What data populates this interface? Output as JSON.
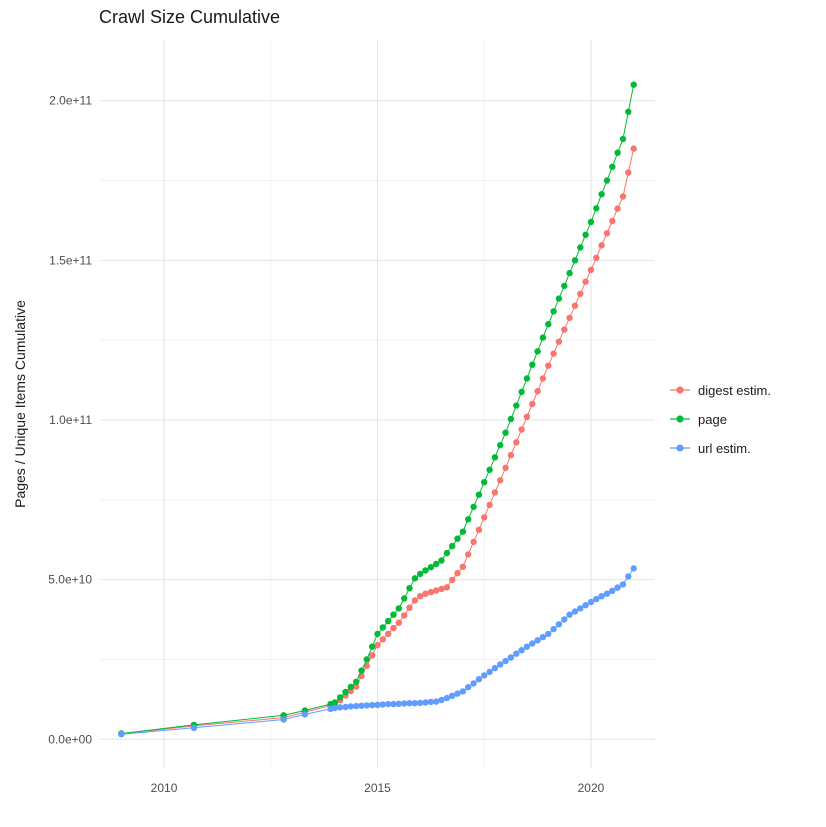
{
  "chart_data": {
    "type": "scatter",
    "connected": true,
    "title": "Crawl Size Cumulative",
    "xlabel": "",
    "ylabel": "Pages / Unique Items Cumulative",
    "legend_position": "right",
    "grid": true,
    "xlim": [
      2008.5,
      2021.5
    ],
    "ylim": [
      -9000000000.0,
      219000000000.0
    ],
    "x_ticks": [
      2010,
      2015,
      2020
    ],
    "x_tick_labels": [
      "2010",
      "2015",
      "2020"
    ],
    "x_minor": [
      2012.5,
      2017.5
    ],
    "y_ticks": [
      0,
      50000000000.0,
      100000000000.0,
      150000000000.0,
      200000000000.0
    ],
    "y_tick_labels": [
      "0.0e+00",
      "5.0e+10",
      "1.0e+11",
      "1.5e+11",
      "2.0e+11"
    ],
    "y_minor": [
      25000000000.0,
      75000000000.0,
      125000000000.0,
      175000000000.0
    ],
    "colors": {
      "background": "#FFFFFF",
      "grid_major": "#E3E3E3",
      "grid_minor": "#F2F2F2",
      "tick_text": "#4D4D4D"
    },
    "x": [
      2009.0,
      2010.7,
      2012.8,
      2013.3,
      2013.9,
      2014.0,
      2014.125,
      2014.25,
      2014.375,
      2014.5,
      2014.625,
      2014.75,
      2014.875,
      2015.0,
      2015.125,
      2015.25,
      2015.375,
      2015.5,
      2015.625,
      2015.75,
      2015.875,
      2016.0,
      2016.125,
      2016.25,
      2016.375,
      2016.5,
      2016.625,
      2016.75,
      2016.875,
      2017.0,
      2017.125,
      2017.25,
      2017.375,
      2017.5,
      2017.625,
      2017.75,
      2017.875,
      2018.0,
      2018.125,
      2018.25,
      2018.375,
      2018.5,
      2018.625,
      2018.75,
      2018.875,
      2019.0,
      2019.125,
      2019.25,
      2019.375,
      2019.5,
      2019.625,
      2019.75,
      2019.875,
      2020.0,
      2020.125,
      2020.25,
      2020.375,
      2020.5,
      2020.625,
      2020.75,
      2020.875,
      2021.0
    ],
    "series": [
      {
        "name": "digest estim.",
        "color": "#F8766D",
        "values": [
          1700000000.0,
          4200000000.0,
          6800000000.0,
          8500000000.0,
          10500000000.0,
          10800000000.0,
          12200000000.0,
          13700000000.0,
          15100000000.0,
          16500000000.0,
          19800000000.0,
          23000000000.0,
          26300000000.0,
          29500000000.0,
          31300000000.0,
          33000000000.0,
          34800000000.0,
          36500000000.0,
          38800000000.0,
          41200000000.0,
          43500000000.0,
          44800000000.0,
          45600000000.0,
          46100000000.0,
          46600000000.0,
          47100000000.0,
          47600000000.0,
          49900000000.0,
          52000000000.0,
          54000000000.0,
          57900000000.0,
          61800000000.0,
          65600000000.0,
          69500000000.0,
          73400000000.0,
          77300000000.0,
          81100000000.0,
          85000000000.0,
          89000000000.0,
          93000000000.0,
          97000000000.0,
          101000000000.0,
          105000000000.0,
          109000000000.0,
          113000000000.0,
          117000000000.0,
          120800000000.0,
          124500000000.0,
          128300000000.0,
          132000000000.0,
          135800000000.0,
          139500000000.0,
          143300000000.0,
          147000000000.0,
          150800000000.0,
          154700000000.0,
          158500000000.0,
          162300000000.0,
          166200000000.0,
          170000000000.0,
          177500000000.0,
          185000000000.0
        ]
      },
      {
        "name": "page",
        "color": "#00BA38",
        "values": [
          1800000000.0,
          4500000000.0,
          7500000000.0,
          9000000000.0,
          11000000000.0,
          11500000000.0,
          13100000000.0,
          14800000000.0,
          16400000000.0,
          18000000000.0,
          21500000000.0,
          25000000000.0,
          29000000000.0,
          33000000000.0,
          35000000000.0,
          37000000000.0,
          39000000000.0,
          41000000000.0,
          44100000000.0,
          47300000000.0,
          50400000000.0,
          51800000000.0,
          52900000000.0,
          53900000000.0,
          54900000000.0,
          56000000000.0,
          58300000000.0,
          60500000000.0,
          62800000000.0,
          65000000000.0,
          68900000000.0,
          72800000000.0,
          76600000000.0,
          80500000000.0,
          84400000000.0,
          88300000000.0,
          92100000000.0,
          96000000000.0,
          100300000000.0,
          104500000000.0,
          108800000000.0,
          113000000000.0,
          117300000000.0,
          121500000000.0,
          125800000000.0,
          130000000000.0,
          134000000000.0,
          138000000000.0,
          142000000000.0,
          146000000000.0,
          150000000000.0,
          154000000000.0,
          158000000000.0,
          162000000000.0,
          166300000000.0,
          170700000000.0,
          175000000000.0,
          179300000000.0,
          183700000000.0,
          188000000000.0,
          196500000000.0,
          205000000000.0
        ]
      },
      {
        "name": "url estim.",
        "color": "#619CFF",
        "values": [
          1600000000.0,
          3600000000.0,
          6200000000.0,
          7800000000.0,
          9500000000.0,
          9800000000.0,
          10000000000.0,
          10100000000.0,
          10300000000.0,
          10400000000.0,
          10500000000.0,
          10600000000.0,
          10700000000.0,
          10800000000.0,
          10900000000.0,
          11000000000.0,
          11000000000.0,
          11100000000.0,
          11200000000.0,
          11300000000.0,
          11300000000.0,
          11400000000.0,
          11500000000.0,
          11700000000.0,
          11800000000.0,
          12300000000.0,
          12900000000.0,
          13600000000.0,
          14300000000.0,
          15000000000.0,
          16300000000.0,
          17500000000.0,
          18800000000.0,
          20000000000.0,
          21100000000.0,
          22300000000.0,
          23400000000.0,
          24500000000.0,
          25600000000.0,
          26800000000.0,
          27900000000.0,
          29000000000.0,
          30000000000.0,
          31000000000.0,
          32000000000.0,
          33000000000.0,
          34500000000.0,
          36000000000.0,
          37500000000.0,
          39000000000.0,
          40000000000.0,
          41000000000.0,
          42000000000.0,
          43000000000.0,
          43900000000.0,
          44800000000.0,
          45600000000.0,
          46500000000.0,
          47500000000.0,
          48500000000.0,
          51000000000.0,
          53500000000.0
        ]
      }
    ]
  }
}
